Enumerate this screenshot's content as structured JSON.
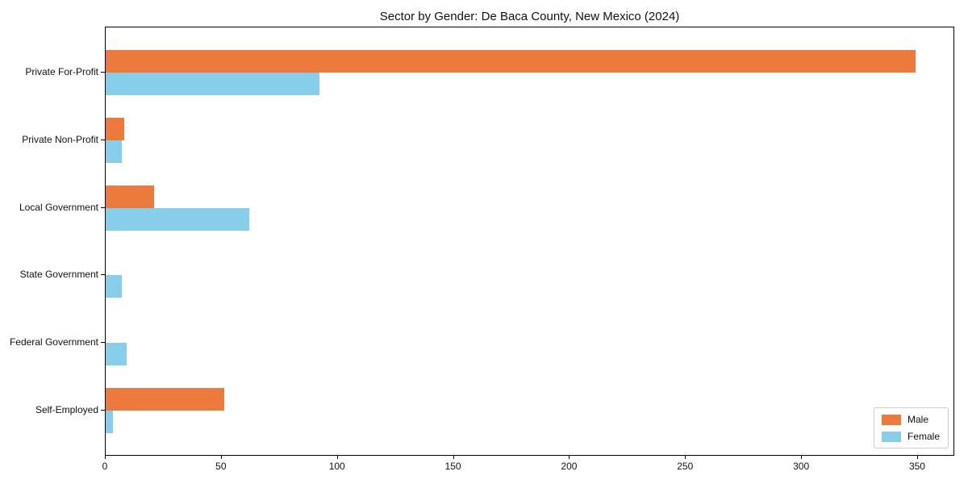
{
  "chart_data": {
    "type": "bar",
    "orientation": "horizontal",
    "title": "Sector by Gender: De Baca County, New Mexico (2024)",
    "categories": [
      "Private For-Profit",
      "Private Non-Profit",
      "Local Government",
      "State Government",
      "Federal Government",
      "Self-Employed"
    ],
    "series": [
      {
        "name": "Male",
        "color": "#EB7A3C",
        "values": [
          349,
          8,
          21,
          0,
          0,
          51
        ]
      },
      {
        "name": "Female",
        "color": "#87CEEB",
        "values": [
          92,
          7,
          62,
          7,
          9,
          3
        ]
      }
    ],
    "xlabel": "",
    "ylabel": "",
    "xlim": [
      0,
      366
    ],
    "xticks": [
      0,
      50,
      100,
      150,
      200,
      250,
      300,
      350
    ],
    "grid": false,
    "legend_position": "lower right"
  }
}
